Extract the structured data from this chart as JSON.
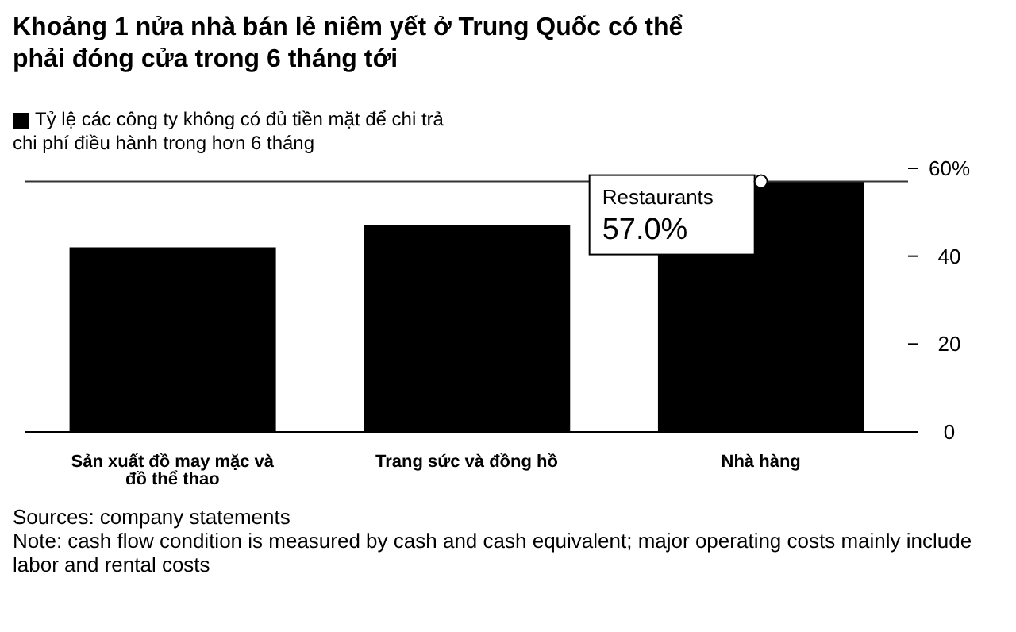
{
  "chart_data": {
    "type": "bar",
    "title": "Khoảng 1 nửa nhà bán lẻ niêm yết ở Trung Quốc có thể phải đóng cửa trong 6 tháng tới",
    "categories": [
      "Sản xuất đồ may mặc và đồ thể thao",
      "Trang sức và đồng hồ",
      "Nhà hàng"
    ],
    "series": [
      {
        "name": "Tỷ lệ các công ty không có đủ tiền mặt để chi trả chi phí điều hành trong hơn 6 tháng",
        "color": "#000000",
        "values": [
          42,
          47,
          57
        ]
      }
    ],
    "ylim": [
      0,
      60
    ],
    "yticks": [
      0,
      20,
      40,
      {
        "value": 60,
        "label": "60%"
      }
    ],
    "grid": false,
    "legend": "top left",
    "ref_lines": [
      {
        "axis": "y",
        "value": 57,
        "color": "#333333"
      }
    ],
    "annotations": [
      {
        "text": "Restaurants",
        "x": "Nhà hàng",
        "y": 57
      },
      {
        "text": "57.0%",
        "x": "Nhà hàng",
        "y": 57
      },
      "Sources: company statements",
      "Note: cash flow condition is measured by cash and cash equivalent; major operating costs mainly include labor and rental costs"
    ]
  }
}
